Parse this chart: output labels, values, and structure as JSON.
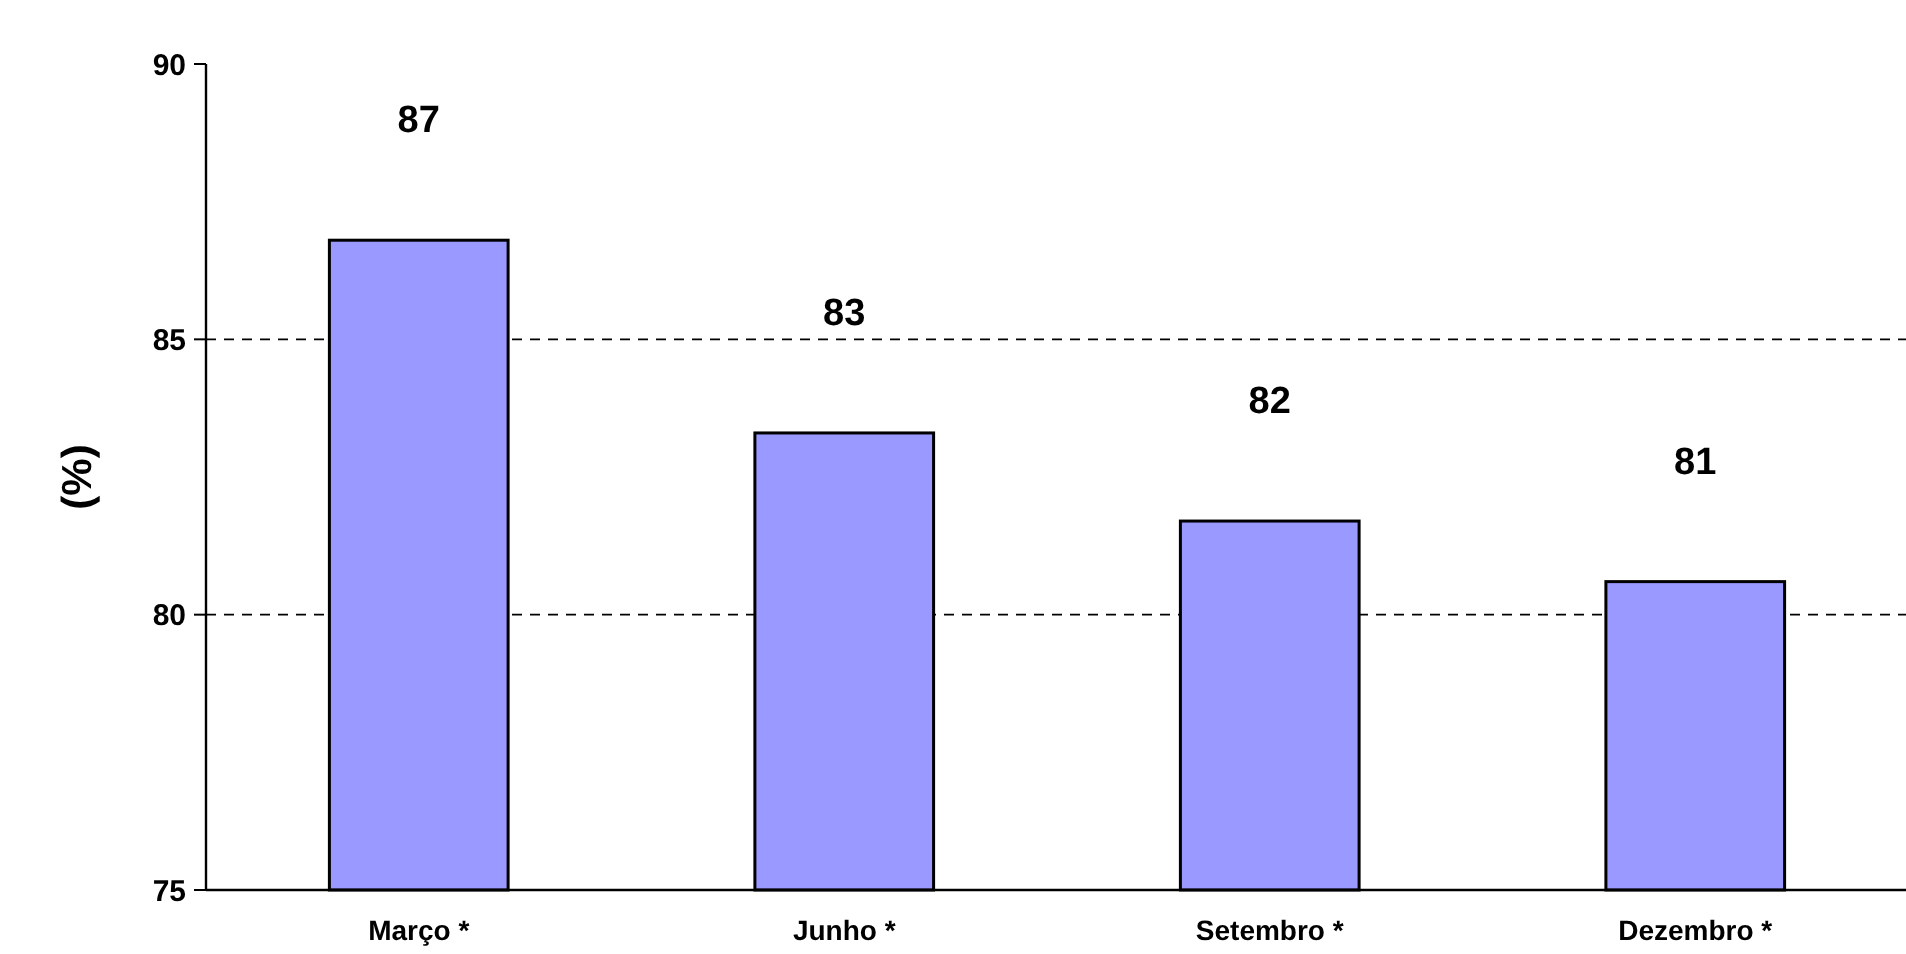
{
  "chart_data": {
    "type": "bar",
    "ylabel": "(%)",
    "categories": [
      "Março *",
      "Junho *",
      "Setembro *",
      "Dezembro *"
    ],
    "values": [
      86.8,
      83.3,
      81.7,
      80.6
    ],
    "value_labels": [
      "87",
      "83",
      "82",
      "81"
    ],
    "color": "#9999ff",
    "ylim": [
      75,
      90
    ],
    "yticks": [
      75,
      80,
      85,
      90
    ],
    "grid": "y"
  }
}
